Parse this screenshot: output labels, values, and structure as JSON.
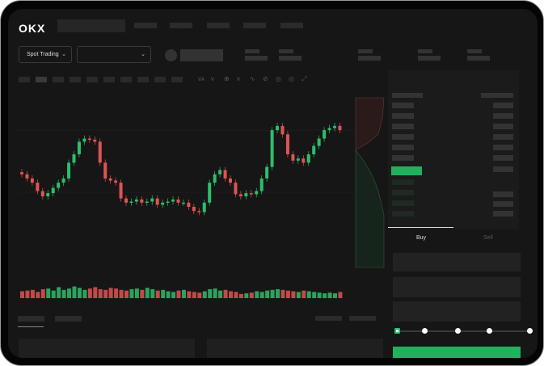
{
  "header": {
    "logo": "OKX",
    "nav_items": 5
  },
  "toolbar": {
    "market_selector": "Spot Trading",
    "pair_selector": ""
  },
  "trade_panel": {
    "tabs": [
      {
        "label": "Buy",
        "active": true
      },
      {
        "label": "Sell",
        "active": false
      }
    ],
    "slider_percent": 0,
    "buy_color": "#21b15e"
  },
  "colors": {
    "up": "#2ebd6b",
    "down": "#e05353",
    "background": "#161616"
  },
  "chart_data": {
    "type": "candlestick",
    "title": "",
    "closes": [
      41,
      37,
      33,
      25,
      20,
      23,
      28,
      33,
      37,
      52,
      60,
      72,
      75,
      74,
      72,
      52,
      37,
      35,
      33,
      18,
      14,
      15,
      17,
      14,
      15,
      18,
      12,
      14,
      15,
      17,
      14,
      14,
      10,
      6,
      5,
      14,
      33,
      41,
      45,
      37,
      33,
      22,
      20,
      23,
      22,
      25,
      37,
      48,
      83,
      87,
      79,
      60,
      54,
      56,
      52,
      60,
      68,
      75,
      83,
      85,
      87,
      83
    ],
    "volumes": [
      50,
      55,
      60,
      45,
      65,
      70,
      55,
      80,
      60,
      70,
      85,
      75,
      60,
      70,
      80,
      65,
      60,
      75,
      70,
      60,
      55,
      65,
      70,
      60,
      75,
      65,
      55,
      60,
      50,
      45,
      55,
      60,
      50,
      45,
      40,
      50,
      65,
      70,
      55,
      60,
      50,
      45,
      30,
      35,
      40,
      50,
      45,
      55,
      60,
      65,
      60,
      55,
      50,
      45,
      55,
      50,
      45,
      40,
      35,
      40,
      35,
      45
    ]
  }
}
